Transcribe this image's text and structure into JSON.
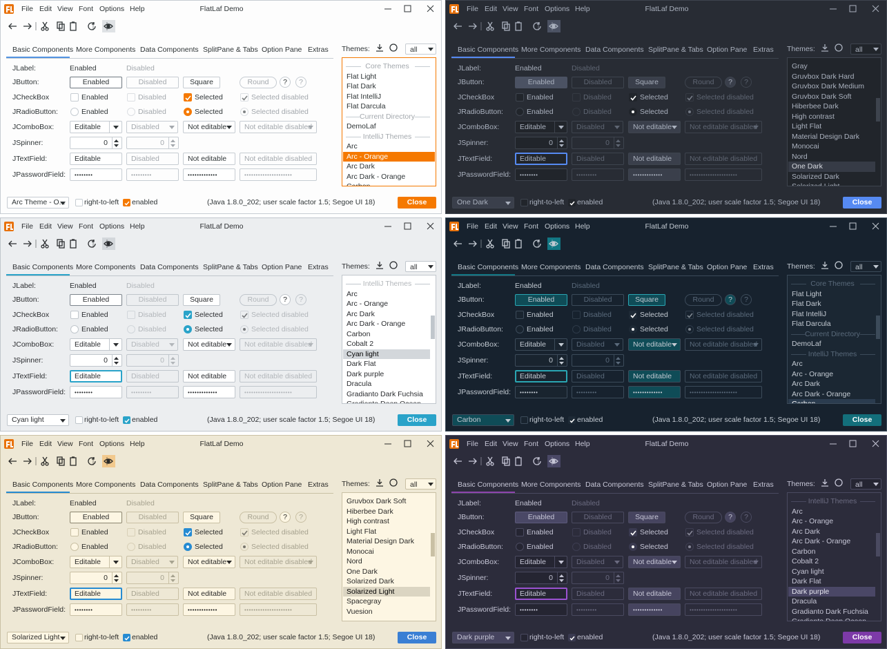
{
  "app_title": "FlatLaf Demo",
  "menu": [
    "File",
    "Edit",
    "View",
    "Font",
    "Options",
    "Help"
  ],
  "tabs": [
    "Basic Components",
    "More Components",
    "Data Components",
    "SplitPane & Tabs",
    "Option Pane",
    "Extras"
  ],
  "themes_label": "Themes:",
  "themes_filter": "all",
  "help": "?",
  "rows": [
    {
      "label": "JLabel:",
      "cells": [
        "Enabled",
        "Disabled"
      ]
    },
    {
      "label": "JButton:",
      "cells": [
        "Enabled",
        "Disabled",
        "Square",
        "Round"
      ]
    },
    {
      "label": "JCheckBox",
      "cells": [
        "Enabled",
        "Disabled",
        "Selected",
        "Selected disabled"
      ]
    },
    {
      "label": "JRadioButton:",
      "cells": [
        "Enabled",
        "Disabled",
        "Selected",
        "Selected disabled"
      ]
    },
    {
      "label": "JComboBox:",
      "cells": [
        "Editable",
        "Disabled",
        "Not editable",
        "Not editable disabled"
      ]
    },
    {
      "label": "JSpinner:",
      "cells": [
        "0",
        "0"
      ]
    },
    {
      "label": "JTextField:",
      "cells": [
        "Editable",
        "Disabled",
        "Not editable",
        "Not editable disabled"
      ]
    },
    {
      "label": "JPasswordField:",
      "cells": [
        "••••••••",
        "•••••••••",
        "•••••••••••••",
        "•••••••••••••••••••••"
      ]
    }
  ],
  "footer": {
    "rtl": "right-to-left",
    "enabled": "enabled",
    "info": "(Java 1.8.0_202;  user scale factor 1.5; Segoe UI 18)",
    "close": "Close"
  },
  "windows": [
    {
      "theme": "Arc Theme - O...",
      "selected": 9,
      "list": [
        {
          "group": "Core Themes"
        },
        {
          "name": "Flat Light"
        },
        {
          "name": "Flat Dark"
        },
        {
          "name": "Flat IntelliJ"
        },
        {
          "name": "Flat Darcula"
        },
        {
          "group": "Current Directory"
        },
        {
          "name": "DemoLaf"
        },
        {
          "group": "IntelliJ Themes"
        },
        {
          "name": "Arc"
        },
        {
          "name": "Arc - Orange"
        },
        {
          "name": "Arc Dark"
        },
        {
          "name": "Arc Dark - Orange"
        },
        {
          "name": "Carbon"
        }
      ]
    },
    {
      "theme": "One Dark",
      "selected": 10,
      "list": [
        {
          "name": "Gray"
        },
        {
          "name": "Gruvbox Dark Hard"
        },
        {
          "name": "Gruvbox Dark Medium"
        },
        {
          "name": "Gruvbox Dark Soft"
        },
        {
          "name": "Hiberbee Dark"
        },
        {
          "name": "High contrast"
        },
        {
          "name": "Light Flat"
        },
        {
          "name": "Material Design Dark"
        },
        {
          "name": "Monocai"
        },
        {
          "name": "Nord"
        },
        {
          "name": "One Dark"
        },
        {
          "name": "Solarized Dark"
        },
        {
          "name": "Solarized Light"
        }
      ]
    },
    {
      "theme": "Cyan light",
      "selected": 7,
      "list": [
        {
          "group": "IntelliJ Themes"
        },
        {
          "name": "Arc"
        },
        {
          "name": "Arc - Orange"
        },
        {
          "name": "Arc Dark"
        },
        {
          "name": "Arc Dark - Orange"
        },
        {
          "name": "Carbon"
        },
        {
          "name": "Cobalt 2"
        },
        {
          "name": "Cyan light"
        },
        {
          "name": "Dark Flat"
        },
        {
          "name": "Dark purple"
        },
        {
          "name": "Dracula"
        },
        {
          "name": "Gradianto Dark Fuchsia"
        },
        {
          "name": "Gradianto Deep Ocean"
        }
      ]
    },
    {
      "theme": "Carbon",
      "selected": 12,
      "list": [
        {
          "group": "Core Themes"
        },
        {
          "name": "Flat Light"
        },
        {
          "name": "Flat Dark"
        },
        {
          "name": "Flat IntelliJ"
        },
        {
          "name": "Flat Darcula"
        },
        {
          "group": "Current Directory"
        },
        {
          "name": "DemoLaf"
        },
        {
          "group": "IntelliJ Themes"
        },
        {
          "name": "Arc"
        },
        {
          "name": "Arc - Orange"
        },
        {
          "name": "Arc Dark"
        },
        {
          "name": "Arc Dark - Orange"
        },
        {
          "name": "Carbon"
        }
      ]
    },
    {
      "theme": "Solarized Light",
      "selected": 9,
      "list": [
        {
          "name": "Gruvbox Dark Soft"
        },
        {
          "name": "Hiberbee Dark"
        },
        {
          "name": "High contrast"
        },
        {
          "name": "Light Flat"
        },
        {
          "name": "Material Design Dark"
        },
        {
          "name": "Monocai"
        },
        {
          "name": "Nord"
        },
        {
          "name": "One Dark"
        },
        {
          "name": "Solarized Dark"
        },
        {
          "name": "Solarized Light"
        },
        {
          "name": "Spacegray"
        },
        {
          "name": "Vuesion"
        }
      ]
    },
    {
      "theme": "Dark purple",
      "selected": 9,
      "list": [
        {
          "group": "IntelliJ Themes"
        },
        {
          "name": "Arc"
        },
        {
          "name": "Arc - Orange"
        },
        {
          "name": "Arc Dark"
        },
        {
          "name": "Arc Dark - Orange"
        },
        {
          "name": "Carbon"
        },
        {
          "name": "Cobalt 2"
        },
        {
          "name": "Cyan light"
        },
        {
          "name": "Dark Flat"
        },
        {
          "name": "Dark purple"
        },
        {
          "name": "Dracula"
        },
        {
          "name": "Gradianto Dark Fuchsia"
        },
        {
          "name": "Gradianto Deep Ocean"
        }
      ]
    }
  ]
}
